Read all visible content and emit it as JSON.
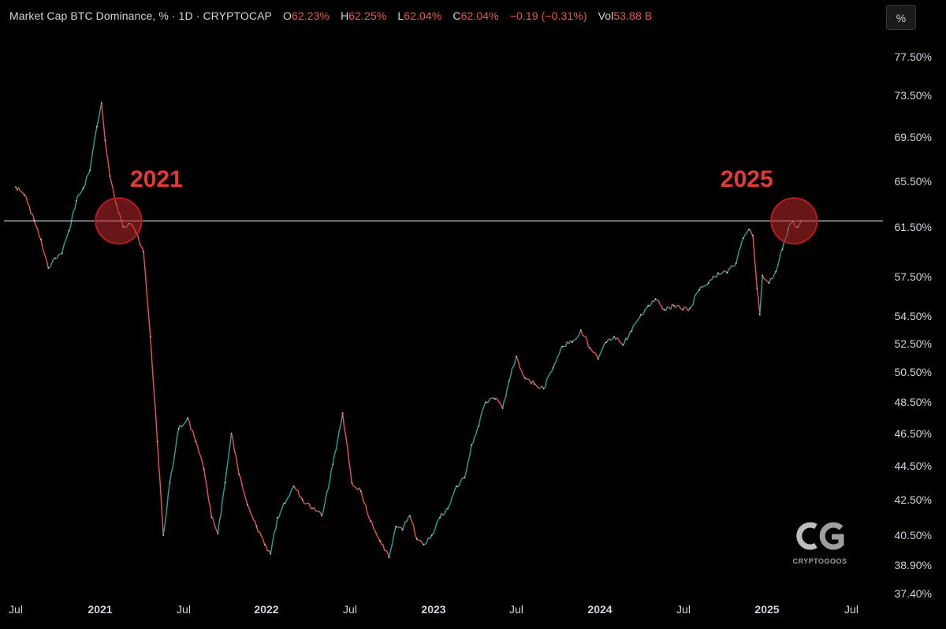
{
  "legend": {
    "title": "Market Cap BTC Dominance, % · 1D · CRYPTOCAP",
    "o_label": "O",
    "o_value": "62.23%",
    "h_label": "H",
    "h_value": "62.25%",
    "l_label": "L",
    "l_value": "62.04%",
    "c_label": "C",
    "c_value": "62.04%",
    "change": "−0.19 (−0.31%)",
    "vol_label": "Vol",
    "vol_value": "53.88 B"
  },
  "toolbar": {
    "percent_label": "%"
  },
  "watermark": {
    "text": "CRYPTOGOOS"
  },
  "colors": {
    "up": "#26a69a",
    "down": "#ef5350",
    "annotation": "#e53935",
    "line": "#d9d9d9"
  },
  "chart_data": {
    "type": "line",
    "yunit": "%",
    "ytick_labels": [
      "77.50%",
      "73.50%",
      "69.50%",
      "65.50%",
      "61.50%",
      "57.50%",
      "54.50%",
      "52.50%",
      "50.50%",
      "48.50%",
      "46.50%",
      "44.50%",
      "42.50%",
      "40.50%",
      "38.90%",
      "37.40%"
    ],
    "xtick_labels": [
      {
        "label": "Jul",
        "bold": false
      },
      {
        "label": "2021",
        "bold": true
      },
      {
        "label": "Jul",
        "bold": false
      },
      {
        "label": "2022",
        "bold": true
      },
      {
        "label": "Jul",
        "bold": false
      },
      {
        "label": "2023",
        "bold": true
      },
      {
        "label": "Jul",
        "bold": false
      },
      {
        "label": "2024",
        "bold": true
      },
      {
        "label": "Jul",
        "bold": false
      },
      {
        "label": "2025",
        "bold": true
      },
      {
        "label": "Jul",
        "bold": false
      }
    ],
    "series": [
      {
        "values": [
          {
            "x": "2020-07-01",
            "y": 65.0
          },
          {
            "x": "2020-07-20",
            "y": 64.3
          },
          {
            "x": "2020-08-10",
            "y": 62.1
          },
          {
            "x": "2020-08-25",
            "y": 60.5
          },
          {
            "x": "2020-09-10",
            "y": 58.2
          },
          {
            "x": "2020-09-25",
            "y": 59.0
          },
          {
            "x": "2020-10-10",
            "y": 59.4
          },
          {
            "x": "2020-10-25",
            "y": 61.2
          },
          {
            "x": "2020-11-10",
            "y": 63.8
          },
          {
            "x": "2020-11-25",
            "y": 64.9
          },
          {
            "x": "2020-12-10",
            "y": 66.5
          },
          {
            "x": "2020-12-25",
            "y": 70.5
          },
          {
            "x": "2021-01-04",
            "y": 72.8
          },
          {
            "x": "2021-01-12",
            "y": 69.2
          },
          {
            "x": "2021-01-22",
            "y": 66.0
          },
          {
            "x": "2021-02-05",
            "y": 63.5
          },
          {
            "x": "2021-02-20",
            "y": 61.5
          },
          {
            "x": "2021-03-05",
            "y": 61.8
          },
          {
            "x": "2021-03-20",
            "y": 61.0
          },
          {
            "x": "2021-04-05",
            "y": 59.5
          },
          {
            "x": "2021-04-20",
            "y": 53.0
          },
          {
            "x": "2021-05-05",
            "y": 46.0
          },
          {
            "x": "2021-05-18",
            "y": 40.5
          },
          {
            "x": "2021-06-01",
            "y": 43.5
          },
          {
            "x": "2021-06-20",
            "y": 46.8
          },
          {
            "x": "2021-07-10",
            "y": 47.5
          },
          {
            "x": "2021-07-28",
            "y": 46.0
          },
          {
            "x": "2021-08-15",
            "y": 44.3
          },
          {
            "x": "2021-09-01",
            "y": 41.5
          },
          {
            "x": "2021-09-15",
            "y": 40.6
          },
          {
            "x": "2021-10-01",
            "y": 43.5
          },
          {
            "x": "2021-10-15",
            "y": 46.5
          },
          {
            "x": "2021-11-01",
            "y": 44.0
          },
          {
            "x": "2021-11-20",
            "y": 42.2
          },
          {
            "x": "2021-12-10",
            "y": 41.0
          },
          {
            "x": "2021-12-28",
            "y": 40.0
          },
          {
            "x": "2022-01-10",
            "y": 39.5
          },
          {
            "x": "2022-01-25",
            "y": 41.5
          },
          {
            "x": "2022-02-10",
            "y": 42.3
          },
          {
            "x": "2022-03-01",
            "y": 43.3
          },
          {
            "x": "2022-03-20",
            "y": 42.5
          },
          {
            "x": "2022-04-10",
            "y": 42.0
          },
          {
            "x": "2022-05-01",
            "y": 41.6
          },
          {
            "x": "2022-05-25",
            "y": 44.6
          },
          {
            "x": "2022-06-15",
            "y": 47.8
          },
          {
            "x": "2022-07-05",
            "y": 43.5
          },
          {
            "x": "2022-07-25",
            "y": 43.0
          },
          {
            "x": "2022-08-15",
            "y": 41.3
          },
          {
            "x": "2022-09-05",
            "y": 40.2
          },
          {
            "x": "2022-09-25",
            "y": 39.3
          },
          {
            "x": "2022-10-10",
            "y": 41.0
          },
          {
            "x": "2022-10-25",
            "y": 40.8
          },
          {
            "x": "2022-11-10",
            "y": 41.6
          },
          {
            "x": "2022-11-25",
            "y": 40.3
          },
          {
            "x": "2022-12-10",
            "y": 40.0
          },
          {
            "x": "2022-12-28",
            "y": 40.5
          },
          {
            "x": "2023-01-15",
            "y": 41.5
          },
          {
            "x": "2023-02-01",
            "y": 42.0
          },
          {
            "x": "2023-02-20",
            "y": 43.3
          },
          {
            "x": "2023-03-10",
            "y": 43.8
          },
          {
            "x": "2023-03-25",
            "y": 45.8
          },
          {
            "x": "2023-04-10",
            "y": 47.0
          },
          {
            "x": "2023-04-25",
            "y": 48.5
          },
          {
            "x": "2023-05-15",
            "y": 48.7
          },
          {
            "x": "2023-06-01",
            "y": 48.1
          },
          {
            "x": "2023-06-15",
            "y": 49.9
          },
          {
            "x": "2023-07-01",
            "y": 51.6
          },
          {
            "x": "2023-07-20",
            "y": 50.1
          },
          {
            "x": "2023-08-10",
            "y": 49.7
          },
          {
            "x": "2023-08-30",
            "y": 49.4
          },
          {
            "x": "2023-09-20",
            "y": 50.8
          },
          {
            "x": "2023-10-10",
            "y": 52.3
          },
          {
            "x": "2023-11-01",
            "y": 52.6
          },
          {
            "x": "2023-11-20",
            "y": 53.5
          },
          {
            "x": "2023-12-10",
            "y": 52.2
          },
          {
            "x": "2023-12-28",
            "y": 51.4
          },
          {
            "x": "2024-01-15",
            "y": 52.6
          },
          {
            "x": "2024-02-01",
            "y": 53.0
          },
          {
            "x": "2024-02-20",
            "y": 52.4
          },
          {
            "x": "2024-03-10",
            "y": 53.4
          },
          {
            "x": "2024-03-30",
            "y": 54.6
          },
          {
            "x": "2024-04-15",
            "y": 55.3
          },
          {
            "x": "2024-05-01",
            "y": 55.8
          },
          {
            "x": "2024-05-20",
            "y": 55.0
          },
          {
            "x": "2024-06-10",
            "y": 55.3
          },
          {
            "x": "2024-06-30",
            "y": 55.0
          },
          {
            "x": "2024-07-15",
            "y": 55.1
          },
          {
            "x": "2024-08-05",
            "y": 56.5
          },
          {
            "x": "2024-08-25",
            "y": 57.0
          },
          {
            "x": "2024-09-15",
            "y": 57.8
          },
          {
            "x": "2024-10-05",
            "y": 57.8
          },
          {
            "x": "2024-10-25",
            "y": 58.6
          },
          {
            "x": "2024-11-10",
            "y": 60.6
          },
          {
            "x": "2024-11-22",
            "y": 61.3
          },
          {
            "x": "2024-12-01",
            "y": 60.8
          },
          {
            "x": "2024-12-10",
            "y": 56.6
          },
          {
            "x": "2024-12-16",
            "y": 54.6
          },
          {
            "x": "2024-12-22",
            "y": 57.6
          },
          {
            "x": "2025-01-05",
            "y": 57.0
          },
          {
            "x": "2025-01-20",
            "y": 57.9
          },
          {
            "x": "2025-02-03",
            "y": 59.7
          },
          {
            "x": "2025-02-15",
            "y": 61.3
          },
          {
            "x": "2025-02-25",
            "y": 62.0
          },
          {
            "x": "2025-03-08",
            "y": 61.5
          },
          {
            "x": "2025-03-16",
            "y": 62.04
          }
        ]
      }
    ],
    "hline": 62.04,
    "annotations": [
      {
        "label": "2021",
        "x": "2021-02-10",
        "y": 62.04
      },
      {
        "label": "2025",
        "x": "2025-02-28",
        "y": 62.04
      }
    ],
    "legend_placement": "none",
    "grid": false
  }
}
